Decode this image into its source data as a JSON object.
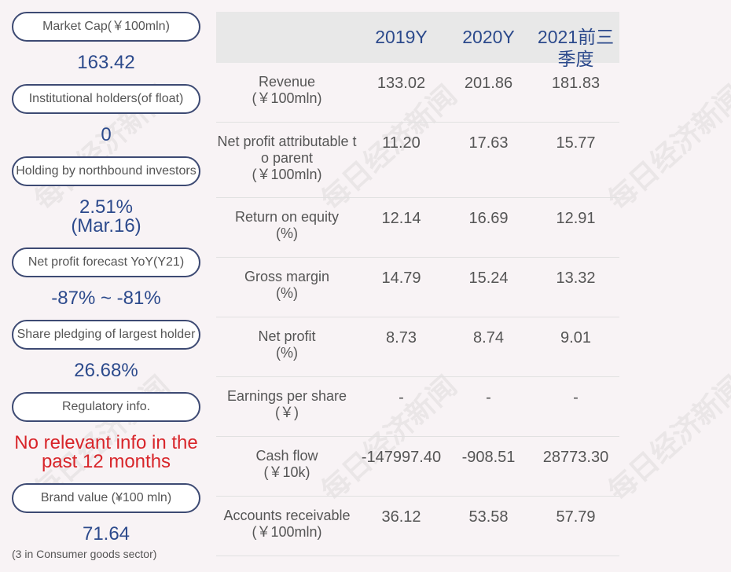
{
  "sidebar": {
    "items": [
      {
        "label": "Market Cap(￥100mln)",
        "value": "163.42"
      },
      {
        "label": "Institutional holders(of float)",
        "value": "0"
      },
      {
        "label": "Holding by northbound investors",
        "value": "2.51%",
        "value2": "(Mar.16)"
      },
      {
        "label": "Net profit forecast YoY(Y21)",
        "value": "-87% ~ -81%"
      },
      {
        "label": "Share pledging of largest holder",
        "value": "26.68%"
      },
      {
        "label": "Regulatory info.",
        "value": "No relevant info in the",
        "value2": "past 12 months"
      },
      {
        "label": "Brand value (¥100 mln)",
        "value": "71.64"
      }
    ],
    "note": "(3 in Consumer goods sector)"
  },
  "table": {
    "headers": [
      "2019Y",
      "2020Y",
      "2021前三",
      "季度"
    ],
    "rows": [
      {
        "label": "Revenue",
        "unit": "(￥100mln)",
        "values": [
          "133.02",
          "201.86",
          "181.83"
        ]
      },
      {
        "label": "Net profit attributable to parent",
        "unit": "(￥100mln)",
        "values": [
          "11.20",
          "17.63",
          "15.77"
        ]
      },
      {
        "label": "Return on equity",
        "unit": "(%)",
        "values": [
          "12.14",
          "16.69",
          "12.91"
        ]
      },
      {
        "label": "Gross margin",
        "unit": "(%)",
        "values": [
          "14.79",
          "15.24",
          "13.32"
        ]
      },
      {
        "label": "Net profit",
        "unit": "(%)",
        "values": [
          "8.73",
          "8.74",
          "9.01"
        ]
      },
      {
        "label": "Earnings per share",
        "unit": "(￥)",
        "values": [
          "-",
          "-",
          "-"
        ]
      },
      {
        "label": "Cash flow",
        "unit": "(￥10k)",
        "values": [
          "-147997.40",
          "-908.51",
          "28773.30"
        ]
      },
      {
        "label": "Accounts receivable",
        "unit": "(￥100mln)",
        "values": [
          "36.12",
          "53.58",
          "57.79"
        ]
      }
    ]
  },
  "watermark": "每日经济新闻",
  "colors": {
    "accent": "#2c4a8c",
    "alert": "#d8252a",
    "border": "#3d4a73"
  }
}
